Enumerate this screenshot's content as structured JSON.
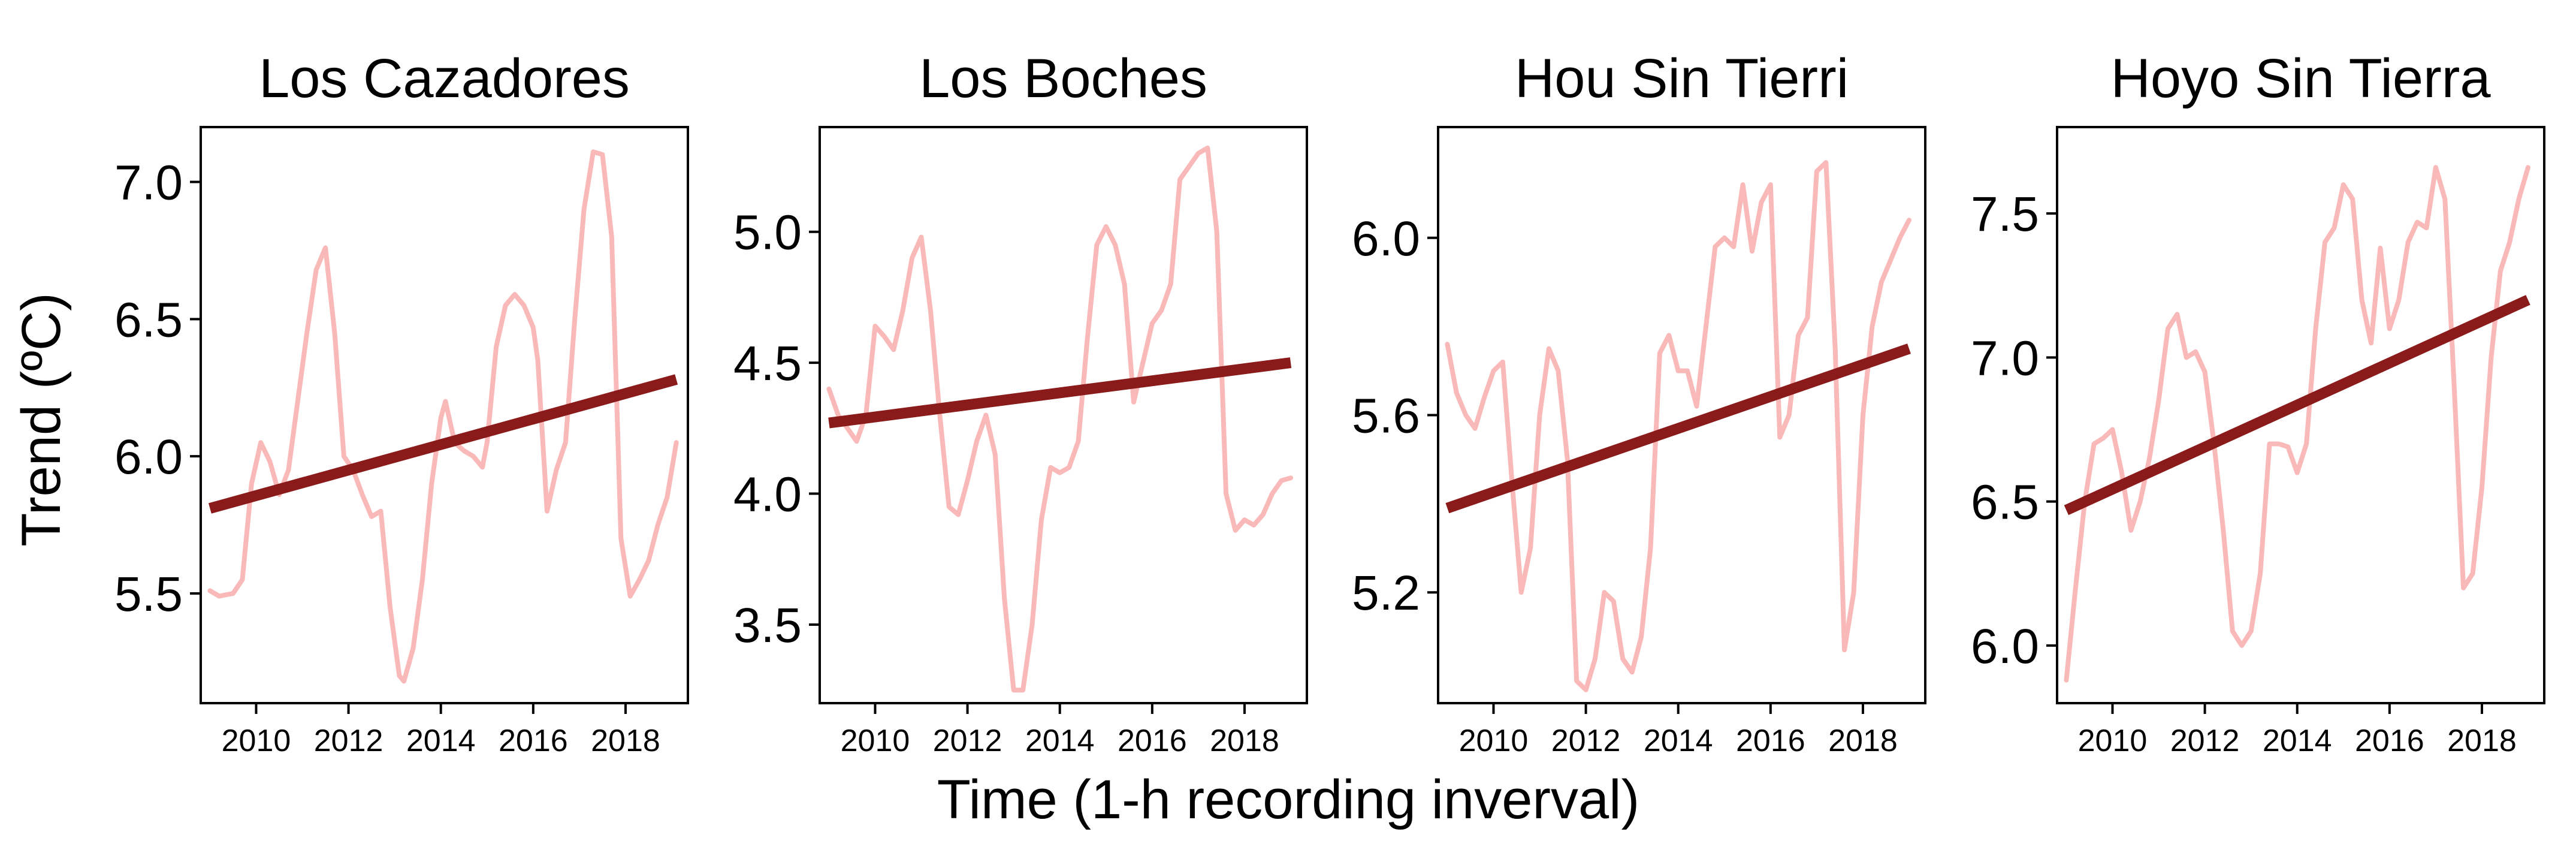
{
  "figure": {
    "ylabel": "Trend (ºC)",
    "xlabel": "Time (1-h recording inverval)"
  },
  "colors": {
    "raw": "#f8b9b8",
    "trend": "#8b1a1a",
    "axis": "#000000"
  },
  "chart_data": [
    {
      "type": "line",
      "title": "Los Cazadores",
      "xlim": [
        2008.8,
        2019.35
      ],
      "ylim": [
        5.1,
        7.2
      ],
      "yticks": [
        5.5,
        6.0,
        6.5,
        7.0
      ],
      "ytick_labels": [
        "5.5",
        "6.0",
        "6.5",
        "7.0"
      ],
      "xticks": [
        2010,
        2012,
        2014,
        2016,
        2018
      ],
      "xtick_labels": [
        "2010",
        "2012",
        "2014",
        "2016",
        "2018"
      ],
      "series": [
        {
          "x": [
            2009.0,
            2009.2,
            2009.5,
            2009.7,
            2009.9,
            2010.1,
            2010.3,
            2010.5,
            2010.7,
            2010.9,
            2011.1,
            2011.3,
            2011.5,
            2011.7,
            2011.9,
            2012.1,
            2012.3,
            2012.5,
            2012.7,
            2012.9,
            2013.1,
            2013.2,
            2013.4,
            2013.6,
            2013.8,
            2014.0,
            2014.1,
            2014.3,
            2014.5,
            2014.7,
            2014.9,
            2015.0,
            2015.2,
            2015.4,
            2015.6,
            2015.8,
            2016.0,
            2016.1,
            2016.3,
            2016.5,
            2016.7,
            2016.9,
            2017.1,
            2017.3,
            2017.5,
            2017.7,
            2017.9,
            2018.1,
            2018.3,
            2018.5,
            2018.7,
            2018.9,
            2019.1
          ],
          "y": [
            5.51,
            5.49,
            5.5,
            5.55,
            5.9,
            6.05,
            5.98,
            5.86,
            5.95,
            6.2,
            6.45,
            6.68,
            6.76,
            6.45,
            6.0,
            5.95,
            5.86,
            5.78,
            5.8,
            5.45,
            5.2,
            5.18,
            5.3,
            5.55,
            5.9,
            6.14,
            6.2,
            6.05,
            6.02,
            6.0,
            5.96,
            6.05,
            6.4,
            6.55,
            6.59,
            6.55,
            6.47,
            6.35,
            5.8,
            5.95,
            6.05,
            6.5,
            6.9,
            7.11,
            7.1,
            6.8,
            5.7,
            5.49,
            5.55,
            5.62,
            5.75,
            5.85,
            6.05
          ]
        },
        {
          "x": [
            2009.0,
            2019.1
          ],
          "y": [
            5.81,
            6.28
          ]
        }
      ]
    },
    {
      "type": "line",
      "title": "Los Boches",
      "xlim": [
        2008.8,
        2019.35
      ],
      "ylim": [
        3.2,
        5.4
      ],
      "yticks": [
        3.5,
        4.0,
        4.5,
        5.0
      ],
      "ytick_labels": [
        "3.5",
        "4.0",
        "4.5",
        "5.0"
      ],
      "xticks": [
        2010,
        2012,
        2014,
        2016,
        2018
      ],
      "xtick_labels": [
        "2010",
        "2012",
        "2014",
        "2016",
        "2018"
      ],
      "series": [
        {
          "x": [
            2009.0,
            2009.2,
            2009.4,
            2009.6,
            2009.8,
            2010.0,
            2010.2,
            2010.4,
            2010.6,
            2010.8,
            2011.0,
            2011.2,
            2011.4,
            2011.6,
            2011.8,
            2012.0,
            2012.2,
            2012.4,
            2012.6,
            2012.8,
            2013.0,
            2013.2,
            2013.4,
            2013.6,
            2013.8,
            2014.0,
            2014.2,
            2014.4,
            2014.6,
            2014.8,
            2015.0,
            2015.2,
            2015.4,
            2015.6,
            2015.8,
            2016.0,
            2016.2,
            2016.4,
            2016.6,
            2016.8,
            2017.0,
            2017.2,
            2017.4,
            2017.6,
            2017.8,
            2018.0,
            2018.2,
            2018.4,
            2018.6,
            2018.8,
            2019.0
          ],
          "y": [
            4.4,
            4.3,
            4.25,
            4.2,
            4.3,
            4.64,
            4.6,
            4.55,
            4.7,
            4.9,
            4.98,
            4.7,
            4.3,
            3.95,
            3.92,
            4.05,
            4.2,
            4.3,
            4.15,
            3.6,
            3.25,
            3.25,
            3.5,
            3.9,
            4.1,
            4.08,
            4.1,
            4.2,
            4.6,
            4.95,
            5.02,
            4.95,
            4.8,
            4.35,
            4.5,
            4.65,
            4.7,
            4.8,
            5.2,
            5.25,
            5.3,
            5.32,
            5.0,
            4.0,
            3.86,
            3.9,
            3.88,
            3.92,
            4.0,
            4.05,
            4.06
          ]
        },
        {
          "x": [
            2009.0,
            2019.0
          ],
          "y": [
            4.27,
            4.5
          ]
        }
      ]
    },
    {
      "type": "line",
      "title": "Hou Sin Tierri",
      "xlim": [
        2008.8,
        2019.35
      ],
      "ylim": [
        4.95,
        6.25
      ],
      "yticks": [
        5.2,
        5.6,
        6.0
      ],
      "ytick_labels": [
        "5.2",
        "5.6",
        "6.0"
      ],
      "xticks": [
        2010,
        2012,
        2014,
        2016,
        2018
      ],
      "xtick_labels": [
        "2010",
        "2012",
        "2014",
        "2016",
        "2018"
      ],
      "series": [
        {
          "x": [
            2009.0,
            2009.2,
            2009.4,
            2009.6,
            2009.8,
            2010.0,
            2010.2,
            2010.4,
            2010.6,
            2010.8,
            2011.0,
            2011.2,
            2011.4,
            2011.6,
            2011.8,
            2012.0,
            2012.2,
            2012.4,
            2012.6,
            2012.8,
            2013.0,
            2013.2,
            2013.4,
            2013.6,
            2013.8,
            2014.0,
            2014.2,
            2014.4,
            2014.6,
            2014.8,
            2015.0,
            2015.2,
            2015.4,
            2015.6,
            2015.8,
            2016.0,
            2016.2,
            2016.4,
            2016.6,
            2016.8,
            2017.0,
            2017.2,
            2017.4,
            2017.6,
            2017.8,
            2018.0,
            2018.2,
            2018.4,
            2018.6,
            2018.8,
            2019.0
          ],
          "y": [
            5.76,
            5.65,
            5.6,
            5.57,
            5.64,
            5.7,
            5.72,
            5.45,
            5.2,
            5.3,
            5.6,
            5.75,
            5.7,
            5.5,
            5.0,
            4.98,
            5.05,
            5.2,
            5.18,
            5.05,
            5.02,
            5.1,
            5.3,
            5.74,
            5.78,
            5.7,
            5.7,
            5.62,
            5.8,
            5.98,
            6.0,
            5.98,
            6.12,
            5.97,
            6.08,
            6.12,
            5.55,
            5.6,
            5.78,
            5.82,
            6.15,
            6.17,
            5.75,
            5.07,
            5.2,
            5.6,
            5.8,
            5.9,
            5.95,
            6.0,
            6.04
          ]
        },
        {
          "x": [
            2009.0,
            2019.0
          ],
          "y": [
            5.39,
            5.75
          ]
        }
      ]
    },
    {
      "type": "line",
      "title": "Hoyo Sin Tierra",
      "xlim": [
        2008.8,
        2019.35
      ],
      "ylim": [
        5.8,
        7.8
      ],
      "yticks": [
        6.0,
        6.5,
        7.0,
        7.5
      ],
      "ytick_labels": [
        "6.0",
        "6.5",
        "7.0",
        "7.5"
      ],
      "xticks": [
        2010,
        2012,
        2014,
        2016,
        2018
      ],
      "xtick_labels": [
        "2010",
        "2012",
        "2014",
        "2016",
        "2018"
      ],
      "series": [
        {
          "x": [
            2009.0,
            2009.2,
            2009.4,
            2009.6,
            2009.8,
            2010.0,
            2010.2,
            2010.4,
            2010.6,
            2010.8,
            2011.0,
            2011.2,
            2011.4,
            2011.6,
            2011.8,
            2012.0,
            2012.2,
            2012.4,
            2012.6,
            2012.8,
            2013.0,
            2013.2,
            2013.4,
            2013.6,
            2013.8,
            2014.0,
            2014.2,
            2014.4,
            2014.6,
            2014.8,
            2015.0,
            2015.2,
            2015.4,
            2015.6,
            2015.8,
            2016.0,
            2016.2,
            2016.4,
            2016.6,
            2016.8,
            2017.0,
            2017.2,
            2017.4,
            2017.6,
            2017.8,
            2018.0,
            2018.2,
            2018.4,
            2018.6,
            2018.8,
            2019.0
          ],
          "y": [
            5.88,
            6.2,
            6.5,
            6.7,
            6.72,
            6.75,
            6.6,
            6.4,
            6.5,
            6.65,
            6.85,
            7.1,
            7.15,
            7.0,
            7.02,
            6.95,
            6.7,
            6.4,
            6.05,
            6.0,
            6.05,
            6.25,
            6.7,
            6.7,
            6.69,
            6.6,
            6.7,
            7.1,
            7.4,
            7.45,
            7.6,
            7.55,
            7.2,
            7.05,
            7.38,
            7.1,
            7.2,
            7.4,
            7.47,
            7.45,
            7.66,
            7.55,
            6.9,
            6.2,
            6.25,
            6.55,
            7.0,
            7.3,
            7.4,
            7.55,
            7.66
          ]
        },
        {
          "x": [
            2009.0,
            2019.0
          ],
          "y": [
            6.47,
            7.2
          ]
        }
      ]
    }
  ]
}
